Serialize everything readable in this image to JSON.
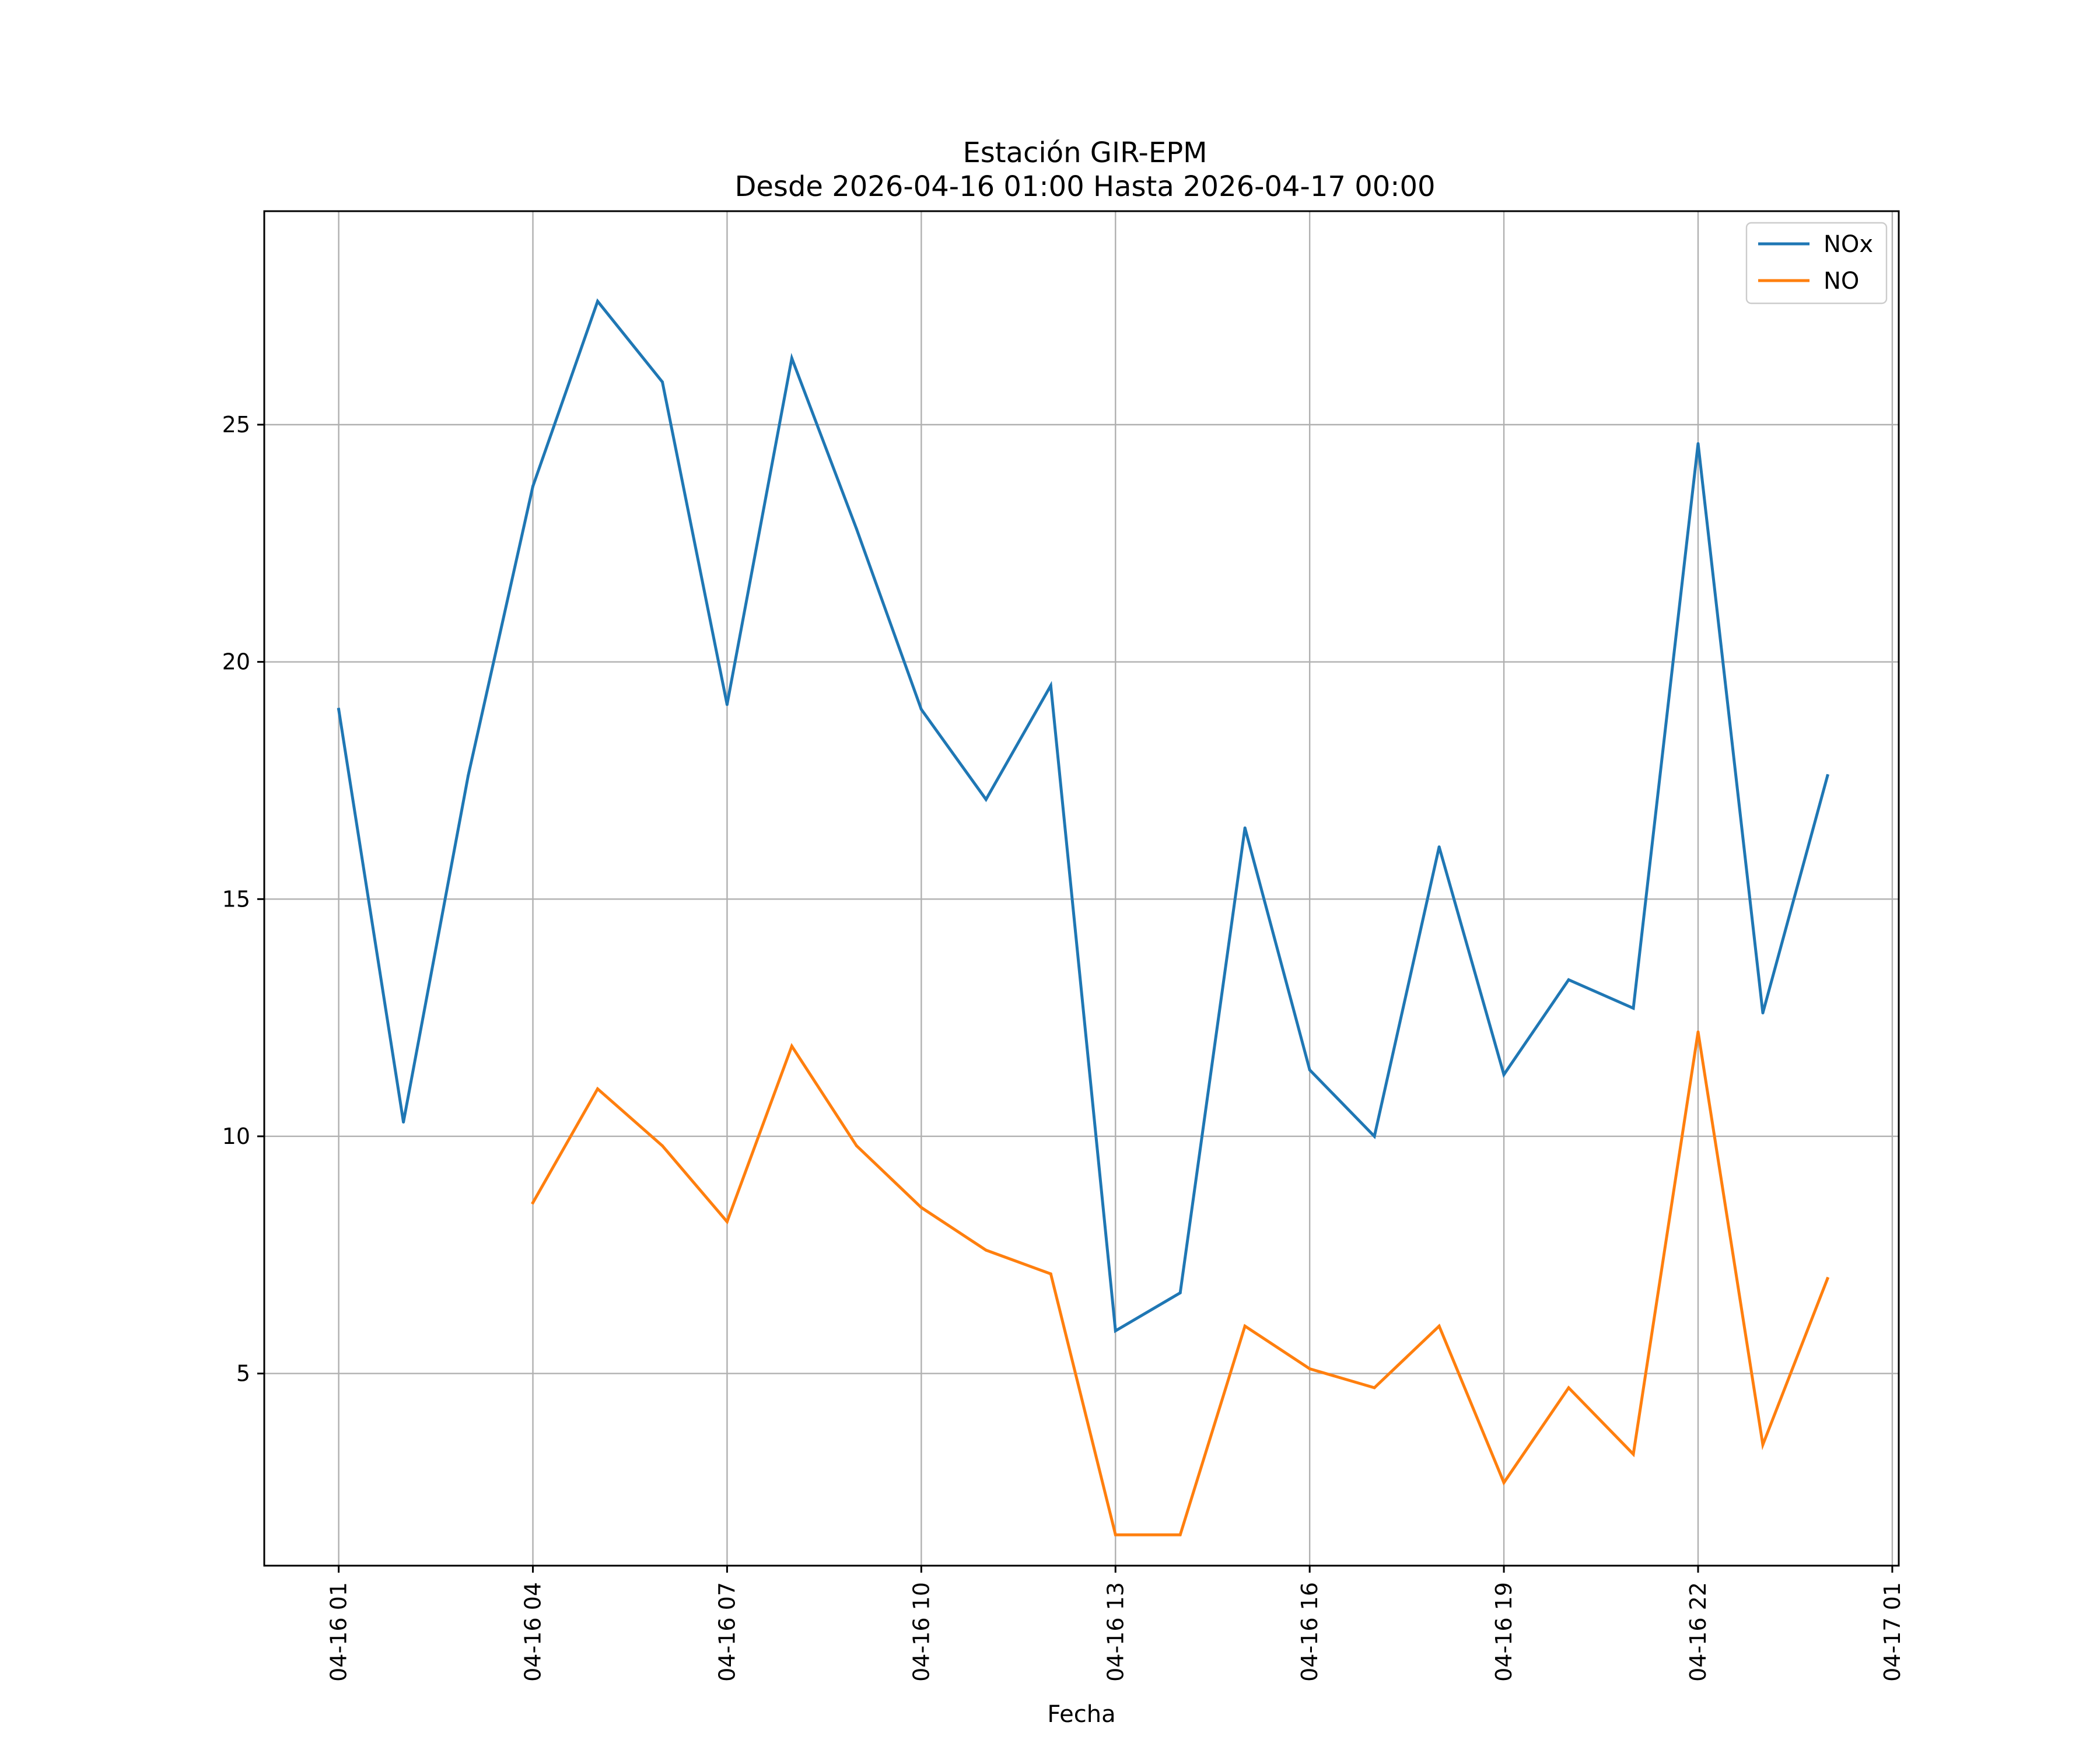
{
  "chart_data": {
    "type": "line",
    "title_lines": [
      "Estación GIR-EPM",
      "Desde 2026-04-16 01:00 Hasta 2026-04-17 00:00"
    ],
    "xlabel": "Fecha",
    "ylabel": "",
    "x_hours": [
      1,
      2,
      3,
      4,
      5,
      6,
      7,
      8,
      9,
      10,
      11,
      12,
      13,
      14,
      15,
      16,
      17,
      18,
      19,
      20,
      21,
      22,
      23,
      24
    ],
    "xlim": [
      -0.15,
      25.1
    ],
    "ylim": [
      0.95,
      29.5
    ],
    "x_ticks": [
      {
        "hour": 1,
        "label": "04-16 01"
      },
      {
        "hour": 4,
        "label": "04-16 04"
      },
      {
        "hour": 7,
        "label": "04-16 07"
      },
      {
        "hour": 10,
        "label": "04-16 10"
      },
      {
        "hour": 13,
        "label": "04-16 13"
      },
      {
        "hour": 16,
        "label": "04-16 16"
      },
      {
        "hour": 19,
        "label": "04-16 19"
      },
      {
        "hour": 22,
        "label": "04-16 22"
      },
      {
        "hour": 25,
        "label": "04-17 01"
      }
    ],
    "y_ticks": [
      {
        "value": 5,
        "label": "5"
      },
      {
        "value": 10,
        "label": "10"
      },
      {
        "value": 15,
        "label": "15"
      },
      {
        "value": 20,
        "label": "20"
      },
      {
        "value": 25,
        "label": "25"
      }
    ],
    "grid": true,
    "legend_position": "top-right",
    "series": [
      {
        "name": "NOx",
        "color": "#1f77b4",
        "values": [
          19.0,
          10.3,
          17.6,
          23.7,
          27.6,
          25.9,
          19.1,
          26.4,
          22.8,
          19.0,
          17.1,
          19.5,
          5.9,
          6.7,
          16.5,
          11.4,
          10.0,
          16.1,
          11.3,
          13.3,
          12.7,
          24.6,
          12.6,
          17.6
        ]
      },
      {
        "name": "NO",
        "color": "#ff7f0e",
        "values": [
          null,
          null,
          null,
          8.6,
          11.0,
          9.8,
          8.2,
          11.9,
          9.8,
          8.5,
          7.6,
          7.1,
          1.6,
          1.6,
          6.0,
          5.1,
          4.7,
          6.0,
          2.7,
          4.7,
          3.3,
          12.2,
          3.5,
          7.0
        ]
      }
    ]
  }
}
